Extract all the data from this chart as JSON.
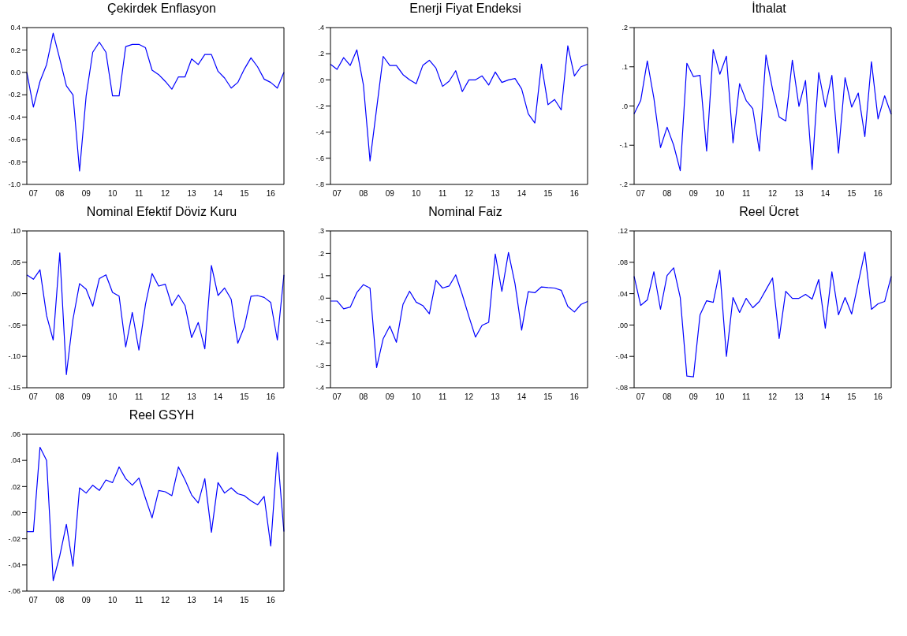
{
  "chart_data": [
    {
      "type": "line",
      "title": "Çekirdek Enflasyon",
      "categories": [
        null,
        "07",
        null,
        null,
        null,
        "08",
        null,
        null,
        null,
        "09",
        null,
        null,
        null,
        "10",
        null,
        null,
        null,
        "11",
        null,
        null,
        null,
        "12",
        null,
        null,
        null,
        "13",
        null,
        null,
        null,
        "14",
        null,
        null,
        null,
        "15",
        null,
        null,
        null,
        "16",
        null,
        null
      ],
      "series": [
        {
          "color": "#0000ff",
          "values": [
            0.0,
            -0.31,
            -0.08,
            0.07,
            0.35,
            0.12,
            -0.12,
            -0.2,
            -0.88,
            -0.21,
            0.18,
            0.27,
            0.18,
            -0.21,
            -0.21,
            0.23,
            0.25,
            0.25,
            0.22,
            0.02,
            -0.02,
            -0.08,
            -0.15,
            -0.04,
            -0.04,
            0.12,
            0.07,
            0.16,
            0.16,
            0.01,
            -0.05,
            -0.14,
            -0.09,
            0.03,
            0.13,
            0.05,
            -0.06,
            -0.09,
            -0.14,
            0.0
          ]
        }
      ],
      "ylim": [
        -1.0,
        0.4
      ],
      "yticks": [
        {
          "value": -1.0,
          "label": "-1.0"
        },
        {
          "value": -0.8,
          "label": "-0.8"
        },
        {
          "value": -0.6,
          "label": "-0.6"
        },
        {
          "value": -0.4,
          "label": "-0.4"
        },
        {
          "value": -0.2,
          "label": "-0.2"
        },
        {
          "value": 0,
          "label": "0.0"
        },
        {
          "value": 0.2,
          "label": "0.2"
        },
        {
          "value": 0.4,
          "label": "0.4"
        }
      ],
      "grid": false,
      "legend": false
    },
    {
      "type": "line",
      "title": "Enerji Fiyat Endeksi",
      "categories": [
        null,
        "07",
        null,
        null,
        null,
        "08",
        null,
        null,
        null,
        "09",
        null,
        null,
        null,
        "10",
        null,
        null,
        null,
        "11",
        null,
        null,
        null,
        "12",
        null,
        null,
        null,
        "13",
        null,
        null,
        null,
        "14",
        null,
        null,
        null,
        "15",
        null,
        null,
        null,
        "16",
        null,
        null
      ],
      "series": [
        {
          "color": "#0000ff",
          "values": [
            0.12,
            0.08,
            0.17,
            0.11,
            0.23,
            -0.04,
            -0.62,
            -0.22,
            0.18,
            0.11,
            0.11,
            0.04,
            0.0,
            -0.03,
            0.11,
            0.15,
            0.09,
            -0.05,
            -0.01,
            0.07,
            -0.09,
            0.0,
            0.0,
            0.03,
            -0.04,
            0.06,
            -0.02,
            0.0,
            0.01,
            -0.07,
            -0.26,
            -0.33,
            0.12,
            -0.19,
            -0.15,
            -0.23,
            0.26,
            0.03,
            0.1,
            0.12
          ]
        }
      ],
      "ylim": [
        -0.8,
        0.4
      ],
      "yticks": [
        {
          "value": -0.8,
          "label": "-.8"
        },
        {
          "value": -0.6,
          "label": "-.6"
        },
        {
          "value": -0.4,
          "label": "-.4"
        },
        {
          "value": -0.2,
          "label": "-.2"
        },
        {
          "value": 0,
          "label": ".0"
        },
        {
          "value": 0.2,
          "label": ".2"
        },
        {
          "value": 0.4,
          "label": ".4"
        }
      ],
      "grid": false,
      "legend": false
    },
    {
      "type": "line",
      "title": "İthalat",
      "categories": [
        null,
        "07",
        null,
        null,
        null,
        "08",
        null,
        null,
        null,
        "09",
        null,
        null,
        null,
        "10",
        null,
        null,
        null,
        "11",
        null,
        null,
        null,
        "12",
        null,
        null,
        null,
        "13",
        null,
        null,
        null,
        "14",
        null,
        null,
        null,
        "15",
        null,
        null,
        null,
        "16",
        null,
        null
      ],
      "series": [
        {
          "color": "#0000ff",
          "values": [
            -0.02,
            0.014,
            0.115,
            0.02,
            -0.106,
            -0.054,
            -0.1,
            -0.165,
            0.109,
            0.075,
            0.078,
            -0.115,
            0.144,
            0.081,
            0.127,
            -0.094,
            0.057,
            0.014,
            -0.007,
            -0.115,
            0.13,
            0.042,
            -0.028,
            -0.038,
            0.117,
            -0.001,
            0.065,
            -0.162,
            0.085,
            -0.003,
            0.078,
            -0.12,
            0.072,
            -0.003,
            0.033,
            -0.078,
            0.113,
            -0.033,
            0.026,
            -0.021
          ]
        }
      ],
      "ylim": [
        -0.2,
        0.2
      ],
      "yticks": [
        {
          "value": -0.2,
          "label": "-.2"
        },
        {
          "value": -0.1,
          "label": "-.1"
        },
        {
          "value": 0,
          "label": ".0"
        },
        {
          "value": 0.1,
          "label": ".1"
        },
        {
          "value": 0.2,
          "label": ".2"
        }
      ],
      "grid": false,
      "legend": false
    },
    {
      "type": "line",
      "title": "Nominal Efektif Döviz Kuru",
      "categories": [
        null,
        "07",
        null,
        null,
        null,
        "08",
        null,
        null,
        null,
        "09",
        null,
        null,
        null,
        "10",
        null,
        null,
        null,
        "11",
        null,
        null,
        null,
        "12",
        null,
        null,
        null,
        "13",
        null,
        null,
        null,
        "14",
        null,
        null,
        null,
        "15",
        null,
        null,
        null,
        "16",
        null,
        null
      ],
      "series": [
        {
          "color": "#0000ff",
          "values": [
            0.03,
            0.023,
            0.038,
            -0.035,
            -0.074,
            0.065,
            -0.129,
            -0.041,
            0.016,
            0.007,
            -0.02,
            0.024,
            0.03,
            0.002,
            -0.004,
            -0.085,
            -0.03,
            -0.09,
            -0.017,
            0.032,
            0.012,
            0.015,
            -0.019,
            -0.002,
            -0.019,
            -0.07,
            -0.046,
            -0.088,
            0.045,
            -0.003,
            0.009,
            -0.009,
            -0.079,
            -0.053,
            -0.004,
            -0.003,
            -0.006,
            -0.014,
            -0.074,
            0.03
          ]
        }
      ],
      "ylim": [
        -0.15,
        0.1
      ],
      "yticks": [
        {
          "value": -0.15,
          "label": "-.15"
        },
        {
          "value": -0.1,
          "label": "-.10"
        },
        {
          "value": -0.05,
          "label": "-.05"
        },
        {
          "value": 0,
          "label": ".00"
        },
        {
          "value": 0.05,
          "label": ".05"
        },
        {
          "value": 0.1,
          "label": ".10"
        }
      ],
      "grid": false,
      "legend": false
    },
    {
      "type": "line",
      "title": "Nominal Faiz",
      "categories": [
        null,
        "07",
        null,
        null,
        null,
        "08",
        null,
        null,
        null,
        "09",
        null,
        null,
        null,
        "10",
        null,
        null,
        null,
        "11",
        null,
        null,
        null,
        "12",
        null,
        null,
        null,
        "13",
        null,
        null,
        null,
        "14",
        null,
        null,
        null,
        "15",
        null,
        null,
        null,
        "16",
        null,
        null
      ],
      "series": [
        {
          "color": "#0000ff",
          "values": [
            -0.013,
            -0.013,
            -0.048,
            -0.04,
            0.025,
            0.06,
            0.045,
            -0.31,
            -0.181,
            -0.125,
            -0.197,
            -0.028,
            0.031,
            -0.018,
            -0.033,
            -0.07,
            0.08,
            0.045,
            0.054,
            0.104,
            0.015,
            -0.082,
            -0.174,
            -0.121,
            -0.108,
            0.197,
            0.03,
            0.204,
            0.063,
            -0.143,
            0.029,
            0.024,
            0.05,
            0.047,
            0.045,
            0.035,
            -0.037,
            -0.062,
            -0.028,
            -0.015
          ]
        }
      ],
      "ylim": [
        -0.4,
        0.3
      ],
      "yticks": [
        {
          "value": -0.4,
          "label": "-.4"
        },
        {
          "value": -0.3,
          "label": "-.3"
        },
        {
          "value": -0.2,
          "label": "-.2"
        },
        {
          "value": -0.1,
          "label": "-.1"
        },
        {
          "value": 0,
          "label": ".0"
        },
        {
          "value": 0.1,
          "label": ".1"
        },
        {
          "value": 0.2,
          "label": ".2"
        },
        {
          "value": 0.3,
          "label": ".3"
        }
      ],
      "grid": false,
      "legend": false
    },
    {
      "type": "line",
      "title": "Reel Ücret",
      "categories": [
        null,
        "07",
        null,
        null,
        null,
        "08",
        null,
        null,
        null,
        "09",
        null,
        null,
        null,
        "10",
        null,
        null,
        null,
        "11",
        null,
        null,
        null,
        "12",
        null,
        null,
        null,
        "13",
        null,
        null,
        null,
        "14",
        null,
        null,
        null,
        "15",
        null,
        null,
        null,
        "16",
        null,
        null
      ],
      "series": [
        {
          "color": "#0000ff",
          "values": [
            0.062,
            0.025,
            0.032,
            0.068,
            0.02,
            0.063,
            0.073,
            0.035,
            -0.065,
            -0.066,
            0.013,
            0.031,
            0.029,
            0.07,
            -0.04,
            0.035,
            0.016,
            0.034,
            0.022,
            0.03,
            0.045,
            0.06,
            -0.017,
            0.043,
            0.034,
            0.034,
            0.039,
            0.033,
            0.058,
            -0.004,
            0.068,
            0.013,
            0.035,
            0.014,
            0.054,
            0.093,
            0.02,
            0.027,
            0.03,
            0.062
          ]
        }
      ],
      "ylim": [
        -0.08,
        0.12
      ],
      "yticks": [
        {
          "value": -0.08,
          "label": "-.08"
        },
        {
          "value": -0.04,
          "label": "-.04"
        },
        {
          "value": 0,
          "label": ".00"
        },
        {
          "value": 0.04,
          "label": ".04"
        },
        {
          "value": 0.08,
          "label": ".08"
        },
        {
          "value": 0.12,
          "label": ".12"
        }
      ],
      "grid": false,
      "legend": false
    },
    {
      "type": "line",
      "title": "Reel GSYH",
      "categories": [
        null,
        "07",
        null,
        null,
        null,
        "08",
        null,
        null,
        null,
        "09",
        null,
        null,
        null,
        "10",
        null,
        null,
        null,
        "11",
        null,
        null,
        null,
        "12",
        null,
        null,
        null,
        "13",
        null,
        null,
        null,
        "14",
        null,
        null,
        null,
        "15",
        null,
        null,
        null,
        "16",
        null,
        null
      ],
      "series": [
        {
          "color": "#0000ff",
          "values": [
            -0.0145,
            -0.0145,
            0.05,
            0.04,
            -0.052,
            -0.033,
            -0.009,
            -0.041,
            0.019,
            0.015,
            0.021,
            0.017,
            0.025,
            0.023,
            0.035,
            0.026,
            0.021,
            0.0265,
            0.011,
            -0.004,
            0.017,
            0.016,
            0.013,
            0.035,
            0.025,
            0.0135,
            0.0075,
            0.026,
            -0.015,
            0.023,
            0.015,
            0.019,
            0.0145,
            0.013,
            0.009,
            0.006,
            0.0125,
            -0.0255,
            0.046,
            -0.0145
          ]
        }
      ],
      "ylim": [
        -0.06,
        0.06
      ],
      "yticks": [
        {
          "value": -0.06,
          "label": "-.06"
        },
        {
          "value": -0.04,
          "label": "-.04"
        },
        {
          "value": -0.02,
          "label": "-.02"
        },
        {
          "value": 0,
          "label": ".00"
        },
        {
          "value": 0.02,
          "label": ".02"
        },
        {
          "value": 0.04,
          "label": ".04"
        },
        {
          "value": 0.06,
          "label": ".06"
        }
      ],
      "grid": false,
      "legend": false
    }
  ]
}
